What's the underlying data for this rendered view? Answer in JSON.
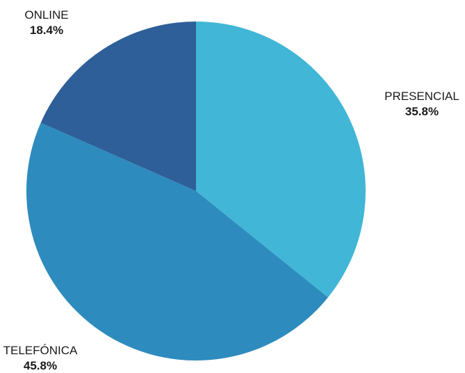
{
  "chart_data": {
    "type": "pie",
    "categories": [
      "PRESENCIAL",
      "TELEFÓNICA",
      "ONLINE"
    ],
    "values": [
      35.8,
      45.8,
      18.4
    ],
    "value_labels": [
      "35.8%",
      "45.8%",
      "18.4%"
    ],
    "colors": [
      "#41b6d6",
      "#2e8bbe",
      "#2e5f98"
    ],
    "start": "12 o'clock",
    "direction": "clockwise",
    "legend": "none"
  }
}
